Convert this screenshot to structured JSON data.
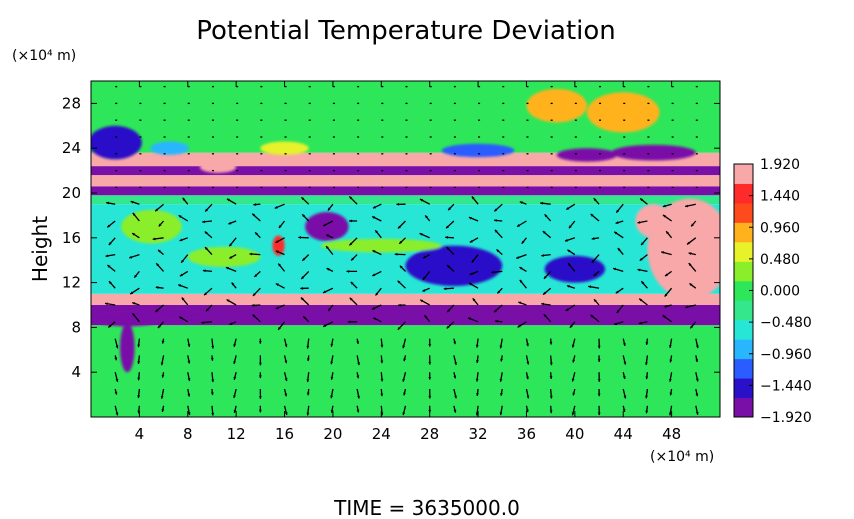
{
  "chart_data": {
    "type": "heatmap",
    "title": "Potential Temperature Deviation",
    "ylabel": "Height",
    "y_unit": "(×10⁴ m)",
    "x_unit": "(×10⁴ m)",
    "footer": "TIME = 3635000.0",
    "xlim": [
      0,
      52
    ],
    "ylim": [
      0,
      30
    ],
    "x_ticks": [
      4,
      8,
      12,
      16,
      20,
      24,
      28,
      32,
      36,
      40,
      44,
      48
    ],
    "y_ticks": [
      4,
      8,
      12,
      16,
      20,
      24,
      28
    ],
    "colorbar": {
      "min": -1.92,
      "max": 1.92,
      "tick_labels": [
        "1.920",
        "1.440",
        "0.960",
        "0.480",
        "0.000",
        "−0.480",
        "−0.960",
        "−1.440",
        "−1.920"
      ],
      "colors": [
        "#7a0fa8",
        "#2a10c8",
        "#2a5cff",
        "#29b6ff",
        "#27e6d6",
        "#34e68c",
        "#2ee65a",
        "#8bee2a",
        "#e8f22a",
        "#ffb21e",
        "#ff4a1e",
        "#ff2a2a",
        "#f8a8a8"
      ]
    },
    "field_bands": [
      {
        "y_from": 0,
        "y_to": 8.2,
        "value": 0.1
      },
      {
        "y_from": 8.2,
        "y_to": 10.0,
        "value": -1.9
      },
      {
        "y_from": 10.0,
        "y_to": 11.0,
        "value": 1.9
      },
      {
        "y_from": 11.0,
        "y_to": 19.0,
        "value": -0.7
      },
      {
        "y_from": 19.0,
        "y_to": 19.8,
        "value": -0.2
      },
      {
        "y_from": 19.8,
        "y_to": 20.6,
        "value": -1.9
      },
      {
        "y_from": 20.6,
        "y_to": 21.6,
        "value": 1.9
      },
      {
        "y_from": 21.6,
        "y_to": 22.4,
        "value": -1.9
      },
      {
        "y_from": 22.4,
        "y_to": 23.6,
        "value": 1.9
      },
      {
        "y_from": 23.6,
        "y_to": 30.0,
        "value": 0.1
      }
    ],
    "blobs": [
      {
        "x": 3,
        "y": 8.8,
        "rx": 3.0,
        "ry": 0.7,
        "value": -1.9
      },
      {
        "x": 3,
        "y": 6.2,
        "rx": 0.6,
        "ry": 2.2,
        "value": -1.9
      },
      {
        "x": 6,
        "y": 9.2,
        "rx": 3.5,
        "ry": 0.6,
        "value": -1.9
      },
      {
        "x": 49.5,
        "y": 15.0,
        "rx": 3.5,
        "ry": 4.5,
        "value": 1.9
      },
      {
        "x": 46.5,
        "y": 17.5,
        "rx": 1.5,
        "ry": 1.5,
        "value": 1.9
      },
      {
        "x": 30,
        "y": 13.5,
        "rx": 4.0,
        "ry": 1.8,
        "value": -1.5
      },
      {
        "x": 40,
        "y": 13.2,
        "rx": 2.5,
        "ry": 1.2,
        "value": -1.5
      },
      {
        "x": 19.5,
        "y": 17.0,
        "rx": 1.8,
        "ry": 1.3,
        "value": -1.9
      },
      {
        "x": 15.5,
        "y": 15.3,
        "rx": 0.5,
        "ry": 0.9,
        "value": 1.6
      },
      {
        "x": 11,
        "y": 14.3,
        "rx": 3.0,
        "ry": 0.9,
        "value": 0.4
      },
      {
        "x": 24,
        "y": 15.3,
        "rx": 5.0,
        "ry": 0.6,
        "value": 0.2
      },
      {
        "x": 5,
        "y": 17.0,
        "rx": 2.5,
        "ry": 1.5,
        "value": 0.3
      },
      {
        "x": 2,
        "y": 24.5,
        "rx": 2.2,
        "ry": 1.5,
        "value": -1.6
      },
      {
        "x": 6.5,
        "y": 24.0,
        "rx": 1.6,
        "ry": 0.6,
        "value": -1.0
      },
      {
        "x": 10.5,
        "y": 22.3,
        "rx": 1.5,
        "ry": 0.5,
        "value": 1.9
      },
      {
        "x": 44,
        "y": 27.2,
        "rx": 3.0,
        "ry": 1.8,
        "value": 0.9
      },
      {
        "x": 38.5,
        "y": 27.8,
        "rx": 2.5,
        "ry": 1.5,
        "value": 0.8
      },
      {
        "x": 46.5,
        "y": 23.6,
        "rx": 3.5,
        "ry": 0.7,
        "value": -1.9
      },
      {
        "x": 41,
        "y": 23.4,
        "rx": 2.5,
        "ry": 0.6,
        "value": -1.9
      },
      {
        "x": 32,
        "y": 23.8,
        "rx": 3.0,
        "ry": 0.6,
        "value": -1.2
      },
      {
        "x": 16,
        "y": 24.0,
        "rx": 2.0,
        "ry": 0.6,
        "value": 0.7
      }
    ]
  }
}
